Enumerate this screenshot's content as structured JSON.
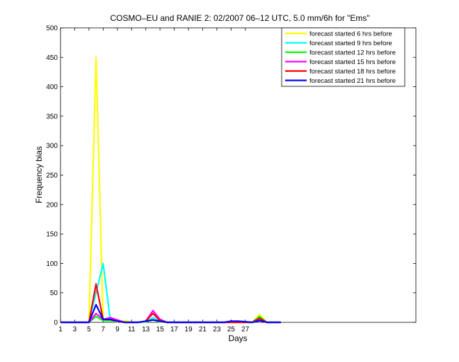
{
  "chart_data": {
    "type": "line",
    "title": "COSMO–EU and RANIE 2: 02/2007 06–12 UTC, 5.0 mm/6h for \"Ems\"",
    "xlabel": "Days",
    "ylabel": "Frequency bias",
    "xlim": [
      1,
      51
    ],
    "ylim": [
      0,
      500
    ],
    "xticks": [
      1,
      3,
      5,
      7,
      9,
      11,
      13,
      15,
      17,
      19,
      21,
      23,
      25,
      27
    ],
    "yticks": [
      0,
      50,
      100,
      150,
      200,
      250,
      300,
      350,
      400,
      450,
      500
    ],
    "legend_position": "top-right",
    "series": [
      {
        "name": "forecast started 6 hrs before",
        "color": "#ffff00",
        "x": [
          1,
          3,
          4,
          5,
          6,
          7,
          8,
          9,
          10,
          11,
          12,
          13,
          14,
          15,
          16,
          20,
          24,
          25,
          26,
          28,
          29,
          30,
          32
        ],
        "y": [
          0,
          0,
          0,
          0,
          450,
          5,
          3,
          1,
          3,
          0,
          0,
          1,
          5,
          1,
          0,
          0,
          0,
          0,
          0,
          0,
          13,
          0,
          0
        ]
      },
      {
        "name": "forecast started 9 hrs before",
        "color": "#00ffff",
        "x": [
          1,
          3,
          4,
          5,
          6,
          7,
          8,
          9,
          10,
          11,
          12,
          13,
          14,
          15,
          16,
          20,
          24,
          25,
          26,
          28,
          29,
          30,
          32
        ],
        "y": [
          0,
          0,
          0,
          0,
          50,
          100,
          5,
          2,
          0,
          0,
          0,
          1,
          8,
          2,
          0,
          0,
          0,
          0,
          0,
          0,
          8,
          0,
          0
        ]
      },
      {
        "name": "forecast started 12 hrs before",
        "color": "#00ff00",
        "x": [
          1,
          3,
          4,
          5,
          6,
          7,
          8,
          9,
          10,
          11,
          12,
          13,
          14,
          15,
          16,
          20,
          24,
          25,
          26,
          28,
          29,
          30,
          32
        ],
        "y": [
          0,
          0,
          0,
          0,
          10,
          3,
          3,
          2,
          0,
          0,
          0,
          1,
          4,
          1,
          0,
          0,
          0,
          0,
          0,
          0,
          10,
          0,
          0
        ]
      },
      {
        "name": "forecast started 15 hrs before",
        "color": "#ff00ff",
        "x": [
          1,
          3,
          4,
          5,
          6,
          7,
          8,
          9,
          10,
          11,
          12,
          13,
          14,
          15,
          16,
          20,
          24,
          25,
          26,
          28,
          29,
          30,
          32
        ],
        "y": [
          0,
          0,
          0,
          0,
          15,
          5,
          8,
          4,
          0,
          0,
          0,
          2,
          20,
          5,
          0,
          0,
          0,
          0,
          0,
          0,
          5,
          0,
          0
        ]
      },
      {
        "name": "forecast started 18 hrs before",
        "color": "#ff0000",
        "x": [
          1,
          3,
          4,
          5,
          6,
          7,
          8,
          9,
          10,
          11,
          12,
          13,
          14,
          15,
          16,
          20,
          24,
          25,
          26,
          28,
          29,
          30,
          32
        ],
        "y": [
          0,
          0,
          0,
          0,
          65,
          5,
          5,
          2,
          0,
          0,
          0,
          2,
          15,
          3,
          0,
          0,
          0,
          0,
          0,
          0,
          7,
          0,
          0
        ]
      },
      {
        "name": "forecast started 21 hrs before",
        "color": "#0000ff",
        "x": [
          1,
          3,
          4,
          5,
          6,
          7,
          8,
          9,
          10,
          11,
          12,
          13,
          14,
          15,
          16,
          20,
          24,
          25,
          26,
          28,
          29,
          30,
          32
        ],
        "y": [
          0,
          0,
          0,
          0,
          30,
          5,
          5,
          2,
          0,
          0,
          0,
          2,
          4,
          2,
          0,
          0,
          0,
          2,
          2,
          0,
          3,
          0,
          0
        ]
      }
    ]
  }
}
